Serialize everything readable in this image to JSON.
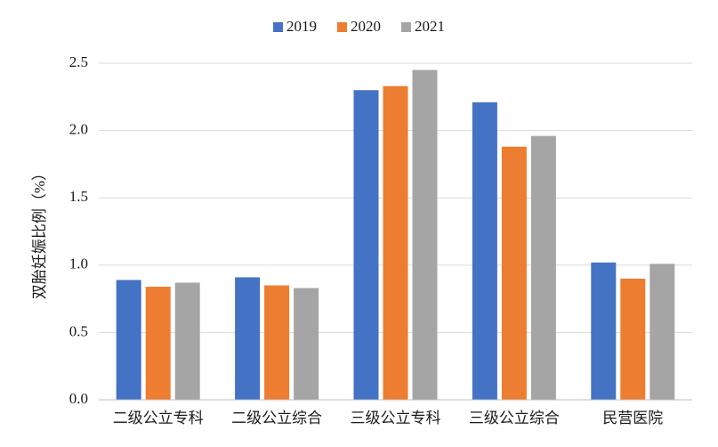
{
  "chart_data": {
    "type": "bar",
    "title": "",
    "xlabel": "",
    "ylabel": "双胎妊娠比例（%）",
    "categories": [
      "二级公立专科",
      "二级公立综合",
      "三级公立专科",
      "三级公立综合",
      "民营医院"
    ],
    "series": [
      {
        "name": "2019",
        "color": "#4472C4",
        "values": [
          0.89,
          0.91,
          2.3,
          2.21,
          1.02
        ]
      },
      {
        "name": "2020",
        "color": "#ED7D31",
        "values": [
          0.84,
          0.85,
          2.33,
          1.88,
          0.9
        ]
      },
      {
        "name": "2021",
        "color": "#A5A5A5",
        "values": [
          0.87,
          0.83,
          2.45,
          1.96,
          1.01
        ]
      }
    ],
    "ylim": [
      0,
      2.5
    ],
    "yticks": [
      "0.0",
      "0.5",
      "1.0",
      "1.5",
      "2.0",
      "2.5"
    ],
    "grid": true,
    "legend_position": "top"
  }
}
